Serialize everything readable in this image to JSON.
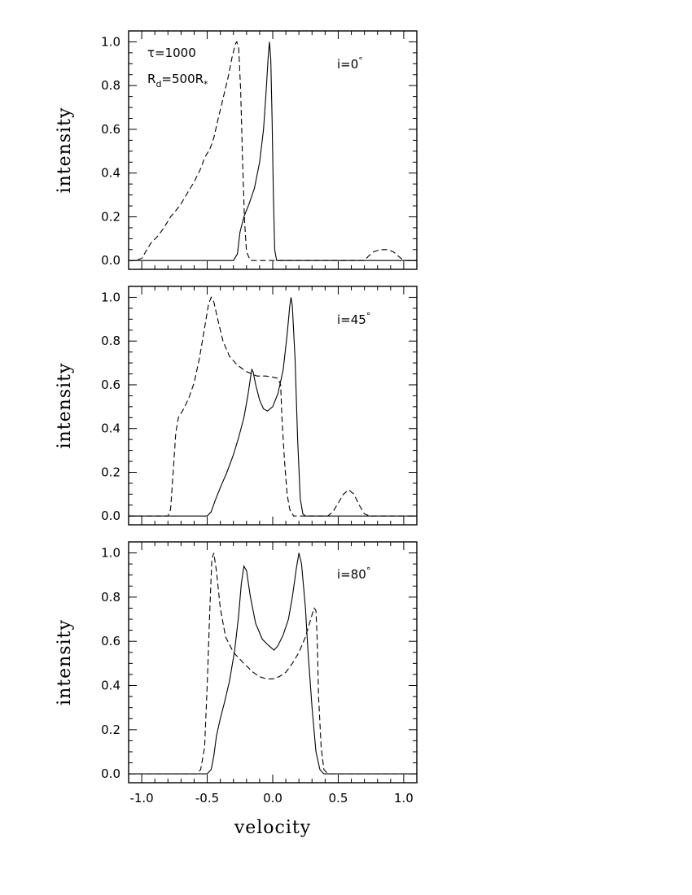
{
  "figure": {
    "xlabel": "velocity",
    "ylabel": "intensity"
  },
  "chart_data": [
    {
      "type": "line",
      "xlim": [
        -1.1,
        1.1
      ],
      "ylim": [
        -0.04,
        1.05
      ],
      "xticks": [
        "-1.0",
        "-0.5",
        "0.0",
        "0.5",
        "1.0"
      ],
      "yticks": [
        "0.0",
        "0.2",
        "0.4",
        "0.6",
        "0.8",
        "1.0"
      ],
      "annotations": {
        "tau": "τ=1000",
        "radius_base": "R",
        "radius_sub": "d",
        "radius_rest": "=500R",
        "radius_sub2": "*",
        "incl_main": "i=0",
        "incl_deg": "°"
      },
      "series": [
        {
          "style": "solid",
          "points": [
            [
              -1.1,
              0
            ],
            [
              -0.3,
              0
            ],
            [
              -0.27,
              0.03
            ],
            [
              -0.25,
              0.13
            ],
            [
              -0.22,
              0.2
            ],
            [
              -0.18,
              0.26
            ],
            [
              -0.14,
              0.33
            ],
            [
              -0.1,
              0.45
            ],
            [
              -0.07,
              0.6
            ],
            [
              -0.05,
              0.78
            ],
            [
              -0.035,
              0.93
            ],
            [
              -0.025,
              1.0
            ],
            [
              -0.015,
              0.92
            ],
            [
              -0.005,
              0.65
            ],
            [
              0.005,
              0.3
            ],
            [
              0.015,
              0.05
            ],
            [
              0.03,
              0
            ],
            [
              1.1,
              0
            ]
          ]
        },
        {
          "style": "dashed",
          "points": [
            [
              -1.1,
              0
            ],
            [
              -1.05,
              0
            ],
            [
              -1.0,
              0.01
            ],
            [
              -0.97,
              0.04
            ],
            [
              -0.93,
              0.08
            ],
            [
              -0.88,
              0.11
            ],
            [
              -0.83,
              0.15
            ],
            [
              -0.78,
              0.2
            ],
            [
              -0.75,
              0.22
            ],
            [
              -0.7,
              0.26
            ],
            [
              -0.65,
              0.31
            ],
            [
              -0.6,
              0.36
            ],
            [
              -0.55,
              0.42
            ],
            [
              -0.52,
              0.47
            ],
            [
              -0.48,
              0.51
            ],
            [
              -0.45,
              0.56
            ],
            [
              -0.42,
              0.64
            ],
            [
              -0.38,
              0.74
            ],
            [
              -0.34,
              0.84
            ],
            [
              -0.31,
              0.93
            ],
            [
              -0.285,
              0.99
            ],
            [
              -0.275,
              1.0
            ],
            [
              -0.26,
              0.97
            ],
            [
              -0.245,
              0.78
            ],
            [
              -0.23,
              0.45
            ],
            [
              -0.215,
              0.18
            ],
            [
              -0.2,
              0.04
            ],
            [
              -0.17,
              0
            ],
            [
              0.7,
              0
            ],
            [
              0.73,
              0.02
            ],
            [
              0.77,
              0.04
            ],
            [
              0.82,
              0.05
            ],
            [
              0.88,
              0.05
            ],
            [
              0.92,
              0.04
            ],
            [
              0.96,
              0.02
            ],
            [
              1.0,
              0
            ],
            [
              1.1,
              0
            ]
          ]
        }
      ]
    },
    {
      "type": "line",
      "xlim": [
        -1.1,
        1.1
      ],
      "ylim": [
        -0.04,
        1.05
      ],
      "xticks": [
        "-1.0",
        "-0.5",
        "0.0",
        "0.5",
        "1.0"
      ],
      "yticks": [
        "0.0",
        "0.2",
        "0.4",
        "0.6",
        "0.8",
        "1.0"
      ],
      "annotations": {
        "incl_main": "i=45",
        "incl_deg": "°"
      },
      "series": [
        {
          "style": "solid",
          "points": [
            [
              -1.1,
              0
            ],
            [
              -0.5,
              0
            ],
            [
              -0.47,
              0.02
            ],
            [
              -0.44,
              0.07
            ],
            [
              -0.4,
              0.13
            ],
            [
              -0.35,
              0.2
            ],
            [
              -0.3,
              0.28
            ],
            [
              -0.26,
              0.36
            ],
            [
              -0.22,
              0.45
            ],
            [
              -0.19,
              0.55
            ],
            [
              -0.17,
              0.63
            ],
            [
              -0.16,
              0.67
            ],
            [
              -0.15,
              0.66
            ],
            [
              -0.13,
              0.6
            ],
            [
              -0.1,
              0.53
            ],
            [
              -0.07,
              0.49
            ],
            [
              -0.04,
              0.48
            ],
            [
              0.0,
              0.5
            ],
            [
              0.04,
              0.56
            ],
            [
              0.08,
              0.67
            ],
            [
              0.11,
              0.83
            ],
            [
              0.13,
              0.96
            ],
            [
              0.14,
              1.0
            ],
            [
              0.15,
              0.96
            ],
            [
              0.17,
              0.72
            ],
            [
              0.19,
              0.35
            ],
            [
              0.21,
              0.08
            ],
            [
              0.23,
              0.01
            ],
            [
              0.25,
              0
            ],
            [
              1.1,
              0
            ]
          ]
        },
        {
          "style": "dashed",
          "points": [
            [
              -1.1,
              0
            ],
            [
              -0.8,
              0
            ],
            [
              -0.78,
              0.03
            ],
            [
              -0.76,
              0.2
            ],
            [
              -0.74,
              0.38
            ],
            [
              -0.72,
              0.45
            ],
            [
              -0.68,
              0.49
            ],
            [
              -0.64,
              0.54
            ],
            [
              -0.6,
              0.61
            ],
            [
              -0.56,
              0.72
            ],
            [
              -0.52,
              0.86
            ],
            [
              -0.49,
              0.97
            ],
            [
              -0.47,
              1.0
            ],
            [
              -0.45,
              0.98
            ],
            [
              -0.42,
              0.9
            ],
            [
              -0.38,
              0.8
            ],
            [
              -0.33,
              0.73
            ],
            [
              -0.27,
              0.69
            ],
            [
              -0.2,
              0.66
            ],
            [
              -0.12,
              0.64
            ],
            [
              -0.05,
              0.64
            ],
            [
              0.0,
              0.635
            ],
            [
              0.04,
              0.63
            ],
            [
              0.06,
              0.6
            ],
            [
              0.07,
              0.45
            ],
            [
              0.09,
              0.25
            ],
            [
              0.11,
              0.1
            ],
            [
              0.13,
              0.03
            ],
            [
              0.16,
              0
            ],
            [
              0.42,
              0
            ],
            [
              0.46,
              0.02
            ],
            [
              0.5,
              0.06
            ],
            [
              0.54,
              0.1
            ],
            [
              0.58,
              0.12
            ],
            [
              0.62,
              0.1
            ],
            [
              0.66,
              0.05
            ],
            [
              0.7,
              0.01
            ],
            [
              0.74,
              0
            ],
            [
              1.1,
              0
            ]
          ]
        }
      ]
    },
    {
      "type": "line",
      "xlim": [
        -1.1,
        1.1
      ],
      "ylim": [
        -0.04,
        1.05
      ],
      "xticks": [
        "-1.0",
        "-0.5",
        "0.0",
        "0.5",
        "1.0"
      ],
      "yticks": [
        "0.0",
        "0.2",
        "0.4",
        "0.6",
        "0.8",
        "1.0"
      ],
      "annotations": {
        "incl_main": "i=80",
        "incl_deg": "°"
      },
      "series": [
        {
          "style": "solid",
          "points": [
            [
              -1.1,
              0
            ],
            [
              -0.5,
              0
            ],
            [
              -0.47,
              0.02
            ],
            [
              -0.45,
              0.08
            ],
            [
              -0.43,
              0.17
            ],
            [
              -0.4,
              0.25
            ],
            [
              -0.37,
              0.32
            ],
            [
              -0.33,
              0.42
            ],
            [
              -0.29,
              0.56
            ],
            [
              -0.26,
              0.72
            ],
            [
              -0.24,
              0.86
            ],
            [
              -0.22,
              0.94
            ],
            [
              -0.2,
              0.92
            ],
            [
              -0.17,
              0.8
            ],
            [
              -0.13,
              0.68
            ],
            [
              -0.08,
              0.61
            ],
            [
              -0.03,
              0.58
            ],
            [
              0.01,
              0.56
            ],
            [
              0.04,
              0.58
            ],
            [
              0.08,
              0.63
            ],
            [
              0.12,
              0.7
            ],
            [
              0.15,
              0.8
            ],
            [
              0.18,
              0.93
            ],
            [
              0.2,
              1.0
            ],
            [
              0.22,
              0.95
            ],
            [
              0.25,
              0.75
            ],
            [
              0.27,
              0.55
            ],
            [
              0.3,
              0.3
            ],
            [
              0.33,
              0.1
            ],
            [
              0.36,
              0.02
            ],
            [
              0.39,
              0
            ],
            [
              1.1,
              0
            ]
          ]
        },
        {
          "style": "dashed",
          "points": [
            [
              -1.1,
              0
            ],
            [
              -0.58,
              0
            ],
            [
              -0.55,
              0.02
            ],
            [
              -0.52,
              0.12
            ],
            [
              -0.5,
              0.4
            ],
            [
              -0.48,
              0.75
            ],
            [
              -0.465,
              0.97
            ],
            [
              -0.45,
              1.0
            ],
            [
              -0.43,
              0.92
            ],
            [
              -0.4,
              0.75
            ],
            [
              -0.36,
              0.62
            ],
            [
              -0.3,
              0.55
            ],
            [
              -0.22,
              0.5
            ],
            [
              -0.15,
              0.46
            ],
            [
              -0.1,
              0.44
            ],
            [
              -0.05,
              0.43
            ],
            [
              0.0,
              0.43
            ],
            [
              0.05,
              0.44
            ],
            [
              0.1,
              0.46
            ],
            [
              0.15,
              0.5
            ],
            [
              0.2,
              0.55
            ],
            [
              0.25,
              0.62
            ],
            [
              0.29,
              0.7
            ],
            [
              0.315,
              0.75
            ],
            [
              0.33,
              0.74
            ],
            [
              0.34,
              0.6
            ],
            [
              0.35,
              0.35
            ],
            [
              0.37,
              0.12
            ],
            [
              0.39,
              0.02
            ],
            [
              0.42,
              0
            ],
            [
              1.1,
              0
            ]
          ]
        }
      ]
    }
  ]
}
